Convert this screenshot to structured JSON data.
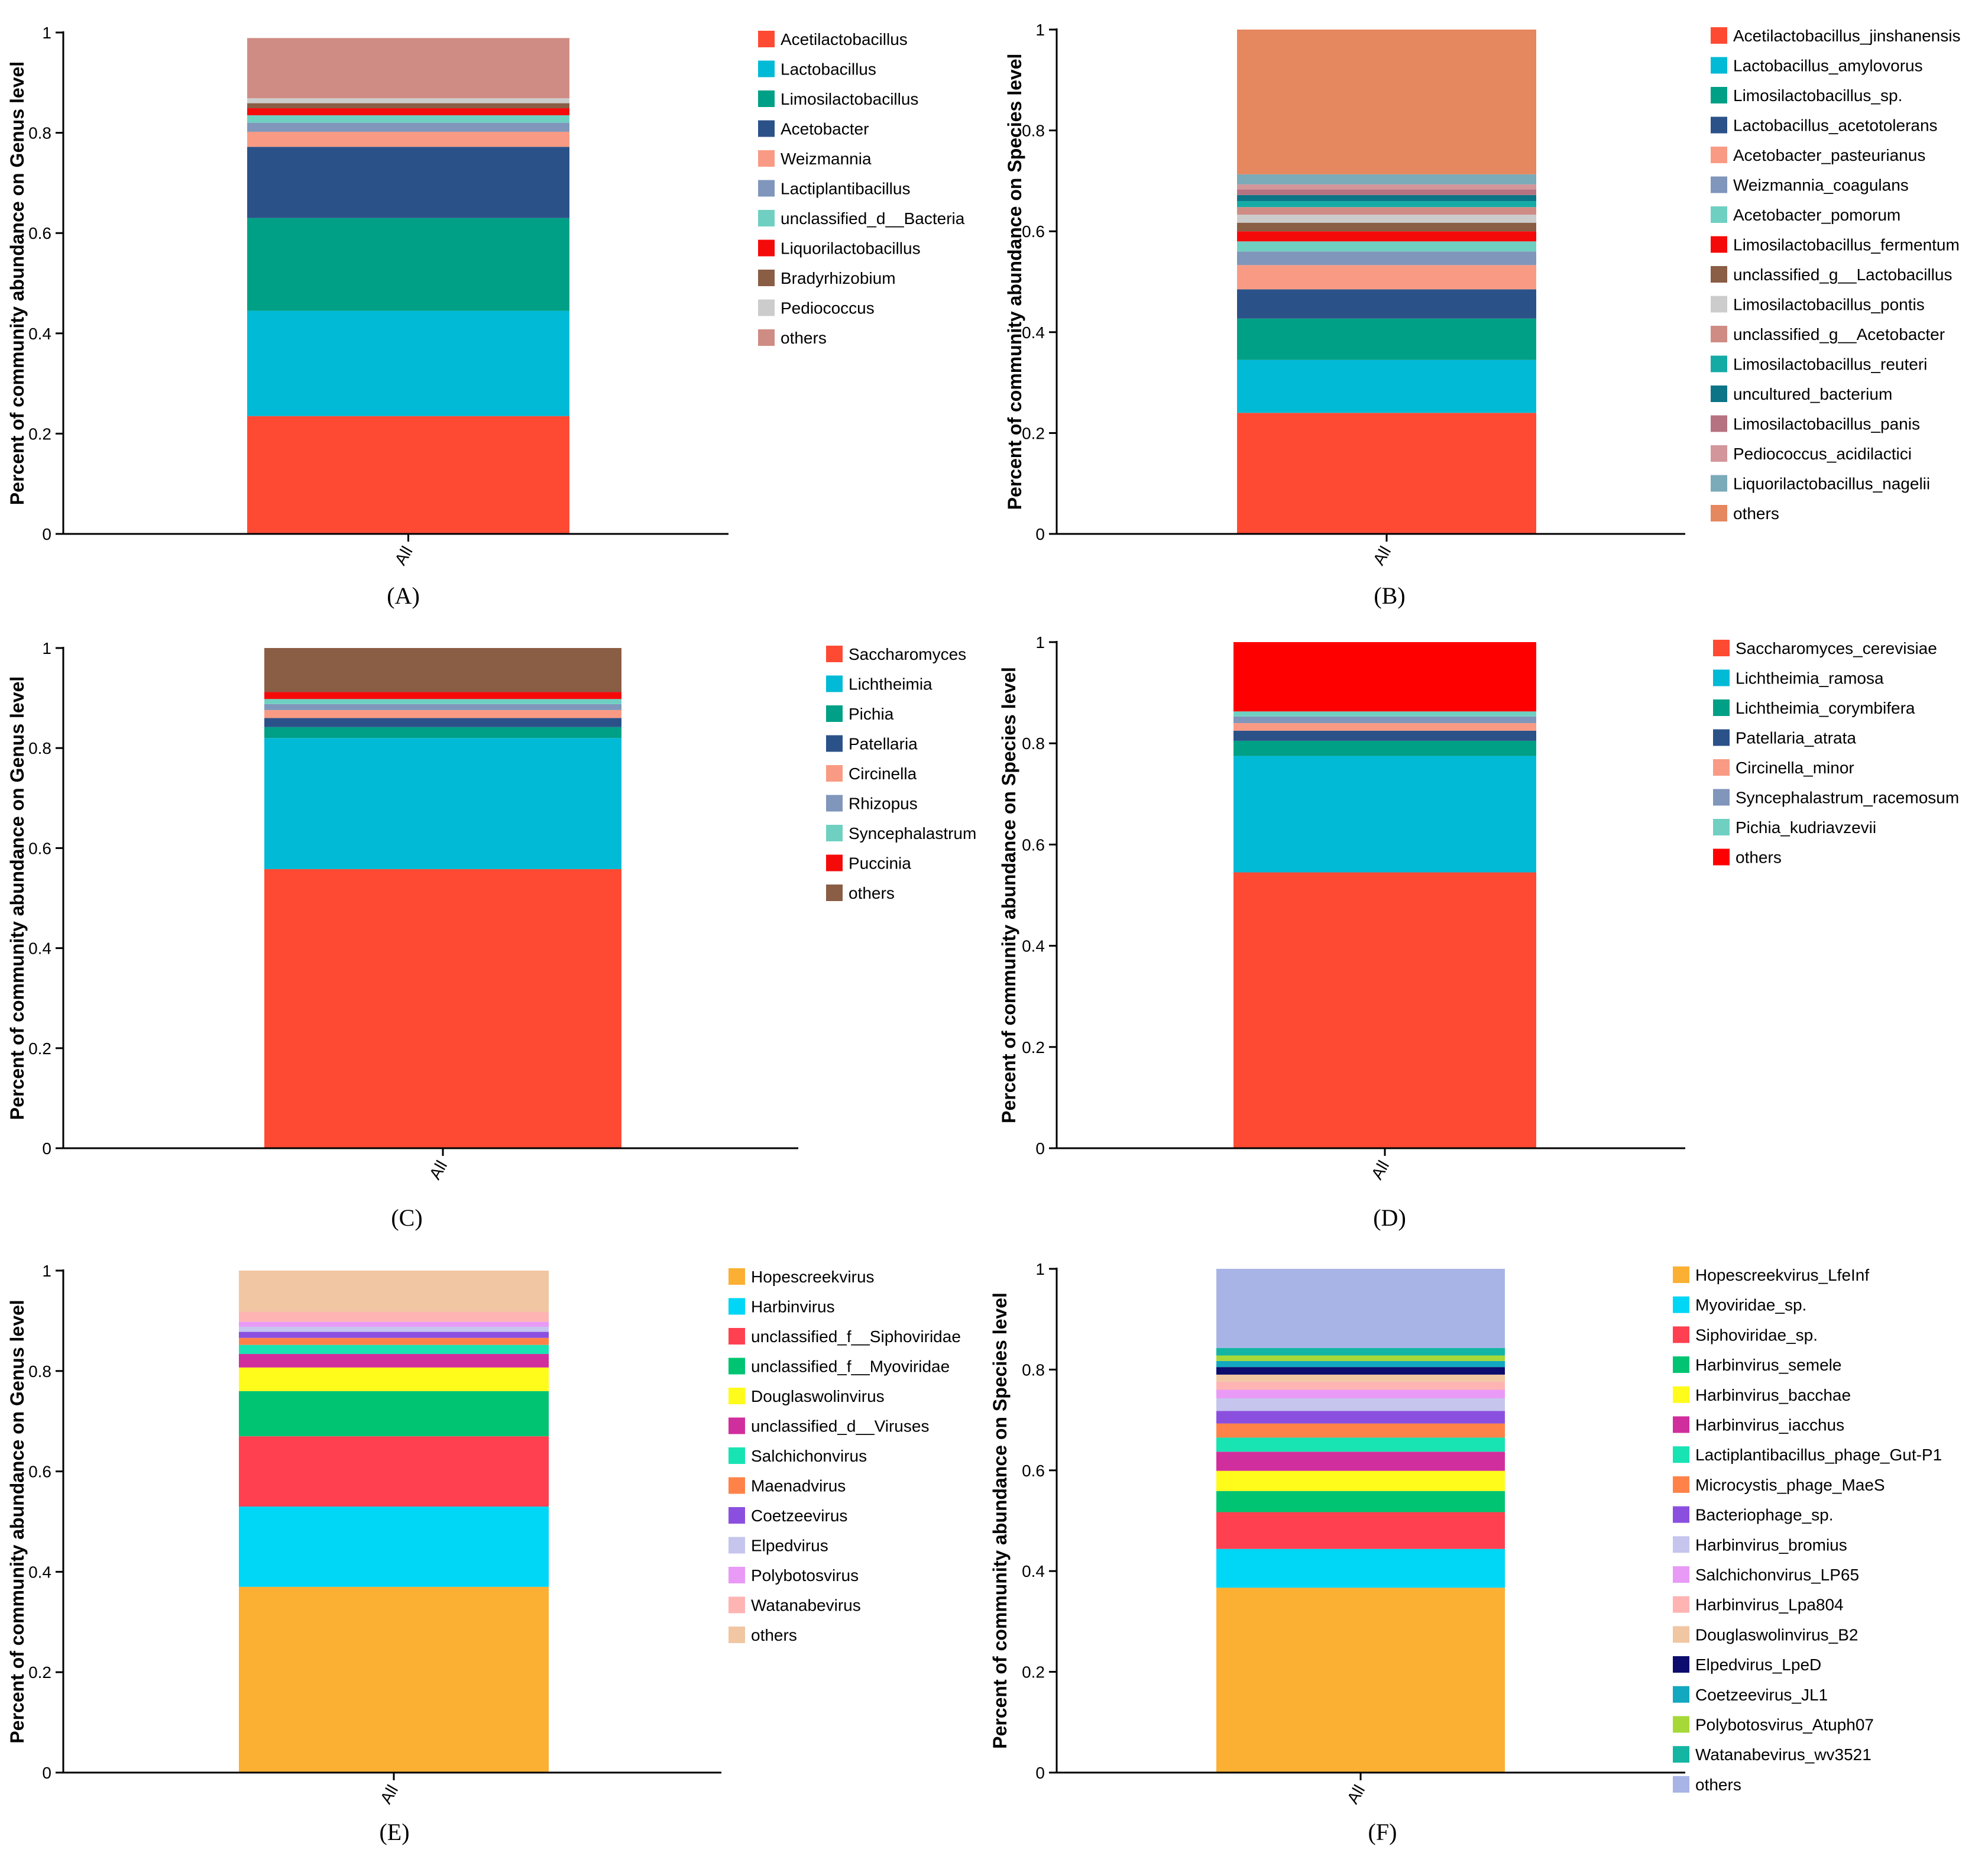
{
  "chart_data": [
    {
      "type": "bar",
      "panel_label": "(A)",
      "ylabel": "Percent of community abundance on Genus level",
      "categories": [
        "All"
      ],
      "ylim": [
        0,
        1
      ],
      "yticks": [
        "0",
        "0.2",
        "0.4",
        "0.6",
        "0.8",
        "1"
      ],
      "series": [
        {
          "name": "Acetilactobacillus",
          "color": "#FF4A33",
          "values": [
            0.235
          ]
        },
        {
          "name": "Lactobacillus",
          "color": "#00BAD6",
          "values": [
            0.21
          ]
        },
        {
          "name": "Limosilactobacillus",
          "color": "#00A086",
          "values": [
            0.185
          ]
        },
        {
          "name": "Acetobacter",
          "color": "#2B5189",
          "values": [
            0.142
          ]
        },
        {
          "name": "Weizmannia",
          "color": "#F99B84",
          "values": [
            0.03
          ]
        },
        {
          "name": "Lactiplantibacillus",
          "color": "#8096BB",
          "values": [
            0.018
          ]
        },
        {
          "name": "unclassified_d__Bacteria",
          "color": "#6FD0C2",
          "values": [
            0.015
          ]
        },
        {
          "name": "Liquorilactobacillus",
          "color": "#F50A0A",
          "values": [
            0.014
          ]
        },
        {
          "name": "Bradyrhizobium",
          "color": "#8A5D45",
          "values": [
            0.01
          ]
        },
        {
          "name": "Pediococcus",
          "color": "#CCCCCC",
          "values": [
            0.01
          ]
        },
        {
          "name": "others",
          "color": "#CF8C84",
          "values": [
            0.12
          ]
        }
      ]
    },
    {
      "type": "bar",
      "panel_label": "(B)",
      "ylabel": "Percent of community abundance on Species level",
      "categories": [
        "All"
      ],
      "ylim": [
        0,
        1
      ],
      "yticks": [
        "0",
        "0.2",
        "0.4",
        "0.6",
        "0.8",
        "1"
      ],
      "series": [
        {
          "name": "Acetilactobacillus_jinshanensis",
          "color": "#FF4A33",
          "values": [
            0.24
          ]
        },
        {
          "name": "Lactobacillus_amylovorus",
          "color": "#00BAD6",
          "values": [
            0.105
          ]
        },
        {
          "name": "Limosilactobacillus_sp.",
          "color": "#00A086",
          "values": [
            0.082
          ]
        },
        {
          "name": "Lactobacillus_acetotolerans",
          "color": "#2B5189",
          "values": [
            0.058
          ]
        },
        {
          "name": "Acetobacter_pasteurianus",
          "color": "#F99B84",
          "values": [
            0.048
          ]
        },
        {
          "name": "Weizmannia_coagulans",
          "color": "#8096BB",
          "values": [
            0.027
          ]
        },
        {
          "name": "Acetobacter_pomorum",
          "color": "#6FD0C2",
          "values": [
            0.02
          ]
        },
        {
          "name": "Limosilactobacillus_fermentum",
          "color": "#F50A0A",
          "values": [
            0.02
          ]
        },
        {
          "name": "unclassified_g__Lactobacillus",
          "color": "#8A5D45",
          "values": [
            0.017
          ]
        },
        {
          "name": "Limosilactobacillus_pontis",
          "color": "#CCCCCC",
          "values": [
            0.016
          ]
        },
        {
          "name": "unclassified_g__Acetobacter",
          "color": "#CF8C84",
          "values": [
            0.015
          ]
        },
        {
          "name": "Limosilactobacillus_reuteri",
          "color": "#15ABA5",
          "values": [
            0.012
          ]
        },
        {
          "name": "uncultured_bacterium",
          "color": "#0C7487",
          "values": [
            0.012
          ]
        },
        {
          "name": "Limosilactobacillus_panis",
          "color": "#B57281",
          "values": [
            0.011
          ]
        },
        {
          "name": "Pediococcus_acidilactici",
          "color": "#D2969B",
          "values": [
            0.01
          ]
        },
        {
          "name": "Liquorilactobacillus_nagelii",
          "color": "#7BAAB8",
          "values": [
            0.02
          ]
        },
        {
          "name": "others",
          "color": "#E5875F",
          "values": [
            0.287
          ]
        }
      ]
    },
    {
      "type": "bar",
      "panel_label": "(C)",
      "ylabel": "Percent of community abundance on Genus level",
      "categories": [
        "All"
      ],
      "ylim": [
        0,
        1
      ],
      "yticks": [
        "0",
        "0.2",
        "0.4",
        "0.6",
        "0.8",
        "1"
      ],
      "series": [
        {
          "name": "Saccharomyces",
          "color": "#FF4A33",
          "values": [
            0.558
          ]
        },
        {
          "name": "Lichtheimia",
          "color": "#00BAD6",
          "values": [
            0.262
          ]
        },
        {
          "name": "Pichia",
          "color": "#00A086",
          "values": [
            0.022
          ]
        },
        {
          "name": "Patellaria",
          "color": "#2B5189",
          "values": [
            0.018
          ]
        },
        {
          "name": "Circinella",
          "color": "#F99B84",
          "values": [
            0.016
          ]
        },
        {
          "name": "Rhizopus",
          "color": "#8096BB",
          "values": [
            0.012
          ]
        },
        {
          "name": "Syncephalastrum",
          "color": "#6FD0C2",
          "values": [
            0.01
          ]
        },
        {
          "name": "Puccinia",
          "color": "#F50A0A",
          "values": [
            0.014
          ]
        },
        {
          "name": "others",
          "color": "#8A5D45",
          "values": [
            0.088
          ]
        }
      ]
    },
    {
      "type": "bar",
      "panel_label": "(D)",
      "ylabel": "Percent of community abundance on Species level",
      "categories": [
        "All"
      ],
      "ylim": [
        0,
        1
      ],
      "yticks": [
        "0",
        "0.2",
        "0.4",
        "0.6",
        "0.8",
        "1"
      ],
      "series": [
        {
          "name": "Saccharomyces_cerevisiae",
          "color": "#FF4A33",
          "values": [
            0.545
          ]
        },
        {
          "name": "Lichtheimia_ramosa",
          "color": "#00BAD6",
          "values": [
            0.23
          ]
        },
        {
          "name": "Lichtheimia_corymbifera",
          "color": "#00A086",
          "values": [
            0.03
          ]
        },
        {
          "name": "Patellaria_atrata",
          "color": "#2B5189",
          "values": [
            0.02
          ]
        },
        {
          "name": "Circinella_minor",
          "color": "#F99B84",
          "values": [
            0.015
          ]
        },
        {
          "name": "Syncephalastrum_racemosum",
          "color": "#8096BB",
          "values": [
            0.013
          ]
        },
        {
          "name": "Pichia_kudriavzevii",
          "color": "#6FD0C2",
          "values": [
            0.01
          ]
        },
        {
          "name": "others",
          "color": "#FF0000",
          "values": [
            0.137
          ]
        }
      ]
    },
    {
      "type": "bar",
      "panel_label": "(E)",
      "ylabel": "Percent of community abundance on Genus level",
      "categories": [
        "All"
      ],
      "ylim": [
        0,
        1
      ],
      "yticks": [
        "0",
        "0.2",
        "0.4",
        "0.6",
        "0.8",
        "1"
      ],
      "series": [
        {
          "name": "Hopescreekvirus",
          "color": "#FBB034",
          "values": [
            0.37
          ]
        },
        {
          "name": "Harbinvirus",
          "color": "#00D6F5",
          "values": [
            0.16
          ]
        },
        {
          "name": "unclassified_f__Siphoviridae",
          "color": "#FF4050",
          "values": [
            0.14
          ]
        },
        {
          "name": "unclassified_f__Myoviridae",
          "color": "#00C472",
          "values": [
            0.09
          ]
        },
        {
          "name": "Douglaswolinvirus",
          "color": "#FFFB1A",
          "values": [
            0.047
          ]
        },
        {
          "name": "unclassified_d__Viruses",
          "color": "#D12E9D",
          "values": [
            0.027
          ]
        },
        {
          "name": "Salchichonvirus",
          "color": "#17E3B3",
          "values": [
            0.018
          ]
        },
        {
          "name": "Maenadvirus",
          "color": "#FF8349",
          "values": [
            0.014
          ]
        },
        {
          "name": "Coetzeevirus",
          "color": "#8B4FE0",
          "values": [
            0.012
          ]
        },
        {
          "name": "Elpedvirus",
          "color": "#C5C5EE",
          "values": [
            0.01
          ]
        },
        {
          "name": "Polybotosvirus",
          "color": "#E89AF6",
          "values": [
            0.01
          ]
        },
        {
          "name": "Watanabevirus",
          "color": "#FFB4B4",
          "values": [
            0.02
          ]
        },
        {
          "name": "others",
          "color": "#F1C6A2",
          "values": [
            0.082
          ]
        }
      ]
    },
    {
      "type": "bar",
      "panel_label": "(F)",
      "ylabel": "Percent of community abundance on Species level",
      "categories": [
        "All"
      ],
      "ylim": [
        0,
        1
      ],
      "yticks": [
        "0",
        "0.2",
        "0.4",
        "0.6",
        "0.8",
        "1"
      ],
      "series": [
        {
          "name": "Hopescreekvirus_LfeInf",
          "color": "#FBB034",
          "values": [
            0.367
          ]
        },
        {
          "name": "Myoviridae_sp.",
          "color": "#00D6F5",
          "values": [
            0.077
          ]
        },
        {
          "name": "Siphoviridae_sp.",
          "color": "#FF4050",
          "values": [
            0.073
          ]
        },
        {
          "name": "Harbinvirus_semele",
          "color": "#00C472",
          "values": [
            0.042
          ]
        },
        {
          "name": "Harbinvirus_bacchae",
          "color": "#FFFB1A",
          "values": [
            0.04
          ]
        },
        {
          "name": "Harbinvirus_iacchus",
          "color": "#D12E9D",
          "values": [
            0.038
          ]
        },
        {
          "name": "Lactiplantibacillus_phage_Gut-P1",
          "color": "#17E3B3",
          "values": [
            0.028
          ]
        },
        {
          "name": "Microcystis_phage_MaeS",
          "color": "#FF8349",
          "values": [
            0.028
          ]
        },
        {
          "name": "Bacteriophage_sp.",
          "color": "#8B4FE0",
          "values": [
            0.025
          ]
        },
        {
          "name": "Harbinvirus_bromius",
          "color": "#C5C5EE",
          "values": [
            0.025
          ]
        },
        {
          "name": "Salchichonvirus_LP65",
          "color": "#E89AF6",
          "values": [
            0.017
          ]
        },
        {
          "name": "Harbinvirus_Lpa804",
          "color": "#FFB4B4",
          "values": [
            0.016
          ]
        },
        {
          "name": "Douglaswolinvirus_B2",
          "color": "#F1C6A2",
          "values": [
            0.014
          ]
        },
        {
          "name": "Elpedvirus_LpeD",
          "color": "#0C0C6E",
          "values": [
            0.015
          ]
        },
        {
          "name": "Coetzeevirus_JL1",
          "color": "#12A8C0",
          "values": [
            0.012
          ]
        },
        {
          "name": "Polybotosvirus_Atuph07",
          "color": "#A6D838",
          "values": [
            0.011
          ]
        },
        {
          "name": "Watanabevirus_wv3521",
          "color": "#14B5A2",
          "values": [
            0.015
          ]
        },
        {
          "name": "others",
          "color": "#A8B4E6",
          "values": [
            0.157
          ]
        }
      ]
    }
  ]
}
